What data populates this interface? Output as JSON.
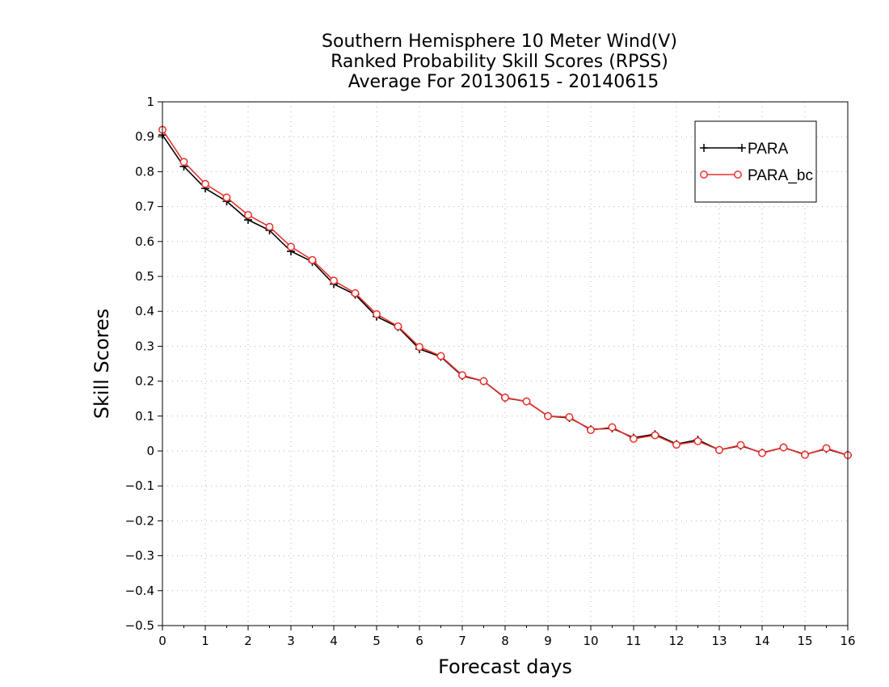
{
  "chart_data": {
    "type": "line",
    "title": [
      "Southern Hemisphere 10 Meter Wind(V)",
      "Ranked Probability Skill Scores (RPSS)",
      "Average For 20130615 - 20140615"
    ],
    "xlabel": "Forecast days",
    "ylabel": "Skill Scores",
    "xlim": [
      0,
      16
    ],
    "ylim": [
      -0.5,
      1
    ],
    "x_ticks": [
      0,
      1,
      2,
      3,
      4,
      5,
      6,
      7,
      8,
      9,
      10,
      11,
      12,
      13,
      14,
      15,
      16
    ],
    "y_ticks": [
      -0.5,
      -0.4,
      -0.3,
      -0.2,
      -0.1,
      0,
      0.1,
      0.2,
      0.3,
      0.4,
      0.5,
      0.6,
      0.7,
      0.8,
      0.9,
      1
    ],
    "x_tick_labels": [
      "0",
      "1",
      "2",
      "3",
      "4",
      "5",
      "6",
      "7",
      "8",
      "9",
      "10",
      "11",
      "12",
      "13",
      "14",
      "15",
      "16"
    ],
    "y_tick_labels": [
      "−0.5",
      "−0.4",
      "−0.3",
      "−0.2",
      "−0.1",
      "0",
      "0.1",
      "0.2",
      "0.3",
      "0.4",
      "0.5",
      "0.6",
      "0.7",
      "0.8",
      "0.9",
      "1"
    ],
    "grid": true,
    "legend_position": "top-right",
    "x": [
      0,
      0.5,
      1,
      1.5,
      2,
      2.5,
      3,
      3.5,
      4,
      4.5,
      5,
      5.5,
      6,
      6.5,
      7,
      7.5,
      8,
      8.5,
      9,
      9.5,
      10,
      10.5,
      11,
      11.5,
      12,
      12.5,
      13,
      13.5,
      14,
      14.5,
      15,
      15.5,
      16
    ],
    "series": [
      {
        "name": "PARA",
        "color": "#000000",
        "marker": "plus",
        "values": [
          0.905,
          0.815,
          0.752,
          0.715,
          0.662,
          0.632,
          0.572,
          0.542,
          0.478,
          0.448,
          0.385,
          0.355,
          0.292,
          0.27,
          0.215,
          0.2,
          0.152,
          0.142,
          0.1,
          0.095,
          0.062,
          0.065,
          0.038,
          0.048,
          0.02,
          0.032,
          0.003,
          0.015,
          -0.005,
          0.01,
          -0.01,
          0.006,
          -0.012
        ]
      },
      {
        "name": "PARA_bc",
        "color": "#e8302c",
        "marker": "circle",
        "values": [
          0.92,
          0.828,
          0.765,
          0.726,
          0.676,
          0.642,
          0.585,
          0.547,
          0.488,
          0.452,
          0.392,
          0.357,
          0.298,
          0.272,
          0.217,
          0.2,
          0.153,
          0.142,
          0.1,
          0.097,
          0.06,
          0.068,
          0.035,
          0.045,
          0.018,
          0.028,
          0.003,
          0.017,
          -0.006,
          0.01,
          -0.011,
          0.008,
          -0.012
        ]
      }
    ]
  }
}
